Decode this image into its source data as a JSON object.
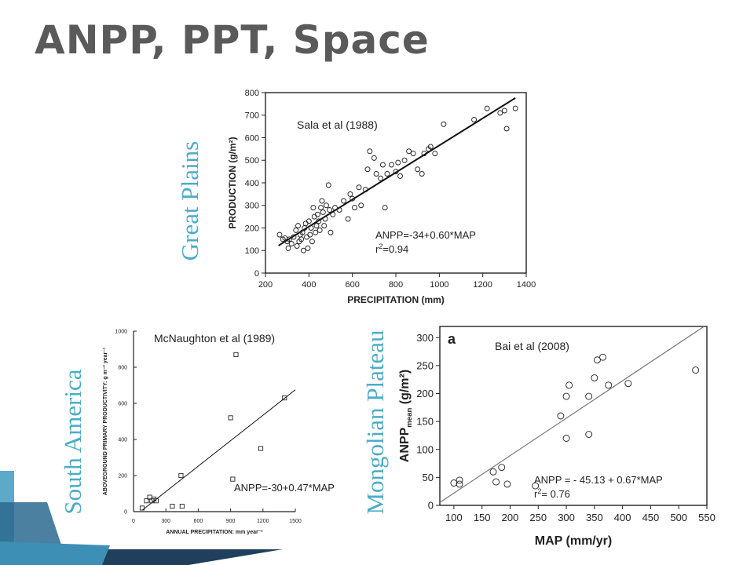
{
  "slide": {
    "title": "ANPP, PPT, Space",
    "region_labels": [
      "Great Plains",
      "South America",
      "Mongolian Plateau"
    ]
  },
  "colors": {
    "accent": "#4bacc6",
    "title": "#5a5a5a",
    "deco_dark": "#1f3f5c",
    "deco_light": "#5da9c8"
  },
  "chart_data": [
    {
      "type": "scatter",
      "region": "Great Plains",
      "citation": "Sala et al (1988)",
      "xlabel": "PRECIPITATION (mm)",
      "ylabel": "PRODUCTION (g/m²)",
      "xlim": [
        200,
        1400
      ],
      "ylim": [
        0,
        800
      ],
      "xticks": [
        200,
        400,
        600,
        800,
        1000,
        1200,
        1400
      ],
      "yticks": [
        0,
        100,
        200,
        300,
        400,
        500,
        600,
        700,
        800
      ],
      "marker": "circle",
      "equation": "ANPP=-34+0.60*MAP",
      "r2_label": "r",
      "r2_value": "=0.94",
      "fit": {
        "intercept": -34,
        "slope": 0.6
      },
      "points": [
        [
          265,
          170
        ],
        [
          280,
          150
        ],
        [
          290,
          155
        ],
        [
          300,
          140
        ],
        [
          305,
          110
        ],
        [
          310,
          150
        ],
        [
          320,
          130
        ],
        [
          330,
          160
        ],
        [
          340,
          190
        ],
        [
          345,
          120
        ],
        [
          350,
          210
        ],
        [
          355,
          140
        ],
        [
          360,
          170
        ],
        [
          365,
          150
        ],
        [
          370,
          180
        ],
        [
          375,
          100
        ],
        [
          380,
          200
        ],
        [
          385,
          220
        ],
        [
          390,
          160
        ],
        [
          395,
          110
        ],
        [
          400,
          230
        ],
        [
          405,
          170
        ],
        [
          410,
          200
        ],
        [
          415,
          140
        ],
        [
          420,
          290
        ],
        [
          425,
          250
        ],
        [
          430,
          180
        ],
        [
          435,
          210
        ],
        [
          440,
          260
        ],
        [
          445,
          230
        ],
        [
          450,
          190
        ],
        [
          455,
          290
        ],
        [
          460,
          320
        ],
        [
          465,
          270
        ],
        [
          470,
          210
        ],
        [
          475,
          240
        ],
        [
          480,
          300
        ],
        [
          490,
          390
        ],
        [
          495,
          280
        ],
        [
          500,
          180
        ],
        [
          510,
          260
        ],
        [
          520,
          290
        ],
        [
          540,
          280
        ],
        [
          560,
          320
        ],
        [
          580,
          240
        ],
        [
          590,
          350
        ],
        [
          600,
          330
        ],
        [
          610,
          290
        ],
        [
          630,
          380
        ],
        [
          640,
          300
        ],
        [
          660,
          370
        ],
        [
          670,
          460
        ],
        [
          680,
          540
        ],
        [
          700,
          510
        ],
        [
          710,
          440
        ],
        [
          730,
          420
        ],
        [
          740,
          480
        ],
        [
          750,
          290
        ],
        [
          760,
          440
        ],
        [
          780,
          480
        ],
        [
          800,
          450
        ],
        [
          810,
          490
        ],
        [
          820,
          430
        ],
        [
          840,
          500
        ],
        [
          860,
          540
        ],
        [
          880,
          530
        ],
        [
          900,
          460
        ],
        [
          920,
          440
        ],
        [
          930,
          530
        ],
        [
          950,
          550
        ],
        [
          960,
          560
        ],
        [
          980,
          530
        ],
        [
          1020,
          660
        ],
        [
          1160,
          680
        ],
        [
          1220,
          730
        ],
        [
          1280,
          710
        ],
        [
          1310,
          640
        ],
        [
          1300,
          720
        ],
        [
          1350,
          730
        ]
      ]
    },
    {
      "type": "scatter",
      "region": "South America",
      "citation": "McNaughton et al (1989)",
      "xlabel": "ANNUAL PRECIPITATION: mm year⁻¹",
      "ylabel": "ABOVEGROUND PRIMARY PRODUCTIVITY: g m⁻² year⁻¹",
      "xlim": [
        0,
        1500
      ],
      "ylim": [
        0,
        1000
      ],
      "xticks": [
        0,
        300,
        600,
        900,
        1200,
        1500
      ],
      "yticks": [
        0,
        200,
        400,
        600,
        800,
        1000
      ],
      "marker": "square",
      "equation": "ANPP=-30+0.47*MAP",
      "fit": {
        "intercept": -30,
        "slope": 0.47
      },
      "points": [
        [
          80,
          20
        ],
        [
          120,
          60
        ],
        [
          150,
          80
        ],
        [
          170,
          60
        ],
        [
          190,
          70
        ],
        [
          210,
          60
        ],
        [
          360,
          30
        ],
        [
          440,
          200
        ],
        [
          450,
          30
        ],
        [
          900,
          520
        ],
        [
          920,
          180
        ],
        [
          950,
          870
        ],
        [
          1180,
          350
        ],
        [
          1400,
          630
        ]
      ]
    },
    {
      "type": "scatter",
      "region": "Mongolian Plateau",
      "citation": "Bai et al (2008)",
      "panel_letter": "a",
      "xlabel": "MAP (mm/yr)",
      "ylabel": "ANPP",
      "ylabel_sub": "mean",
      "ylabel_unit": "(g/m²)",
      "xlim": [
        75,
        550
      ],
      "ylim": [
        0,
        320
      ],
      "xticks": [
        100,
        150,
        200,
        250,
        300,
        350,
        400,
        450,
        500,
        550
      ],
      "yticks": [
        0,
        50,
        100,
        150,
        200,
        250,
        300
      ],
      "marker": "circle",
      "equation": "ANPP = - 45.13 + 0.67*MAP",
      "r2_label": "r",
      "r2_value": "= 0.76",
      "fit": {
        "intercept": -45.13,
        "slope": 0.67
      },
      "points": [
        [
          100,
          40
        ],
        [
          110,
          45
        ],
        [
          110,
          38
        ],
        [
          170,
          60
        ],
        [
          175,
          42
        ],
        [
          185,
          68
        ],
        [
          195,
          38
        ],
        [
          245,
          35
        ],
        [
          290,
          160
        ],
        [
          300,
          195
        ],
        [
          300,
          120
        ],
        [
          305,
          215
        ],
        [
          340,
          195
        ],
        [
          340,
          127
        ],
        [
          350,
          228
        ],
        [
          355,
          260
        ],
        [
          365,
          265
        ],
        [
          375,
          215
        ],
        [
          410,
          218
        ],
        [
          530,
          242
        ]
      ]
    }
  ]
}
